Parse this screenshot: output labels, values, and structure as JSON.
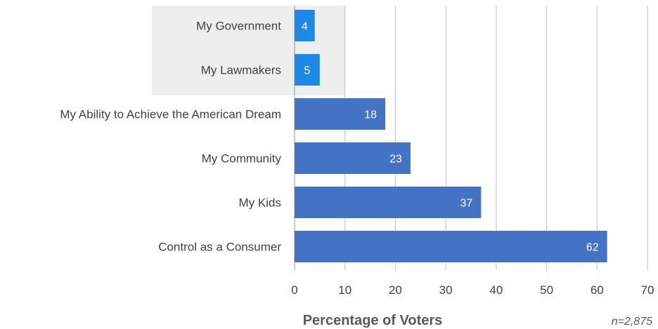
{
  "chart_data": {
    "type": "bar",
    "orientation": "horizontal",
    "categories": [
      "My Government",
      "My Lawmakers",
      "My Ability to Achieve the American Dream",
      "My Community",
      "My Kids",
      "Control as a Consumer"
    ],
    "values": [
      4,
      5,
      18,
      23,
      37,
      62
    ],
    "highlighted": [
      "My Government",
      "My Lawmakers"
    ],
    "xlabel": "Percentage of Voters",
    "xlim": [
      0,
      70
    ],
    "xticks": [
      0,
      10,
      20,
      30,
      40,
      50,
      60,
      70
    ],
    "grid": "vertical",
    "note": "n=2,875",
    "colors": {
      "bar": "#4472c4",
      "bar_highlight": "#1e88e5",
      "highlight_background": "#eeeeee",
      "grid": "#c8c8c8",
      "text": "#404040"
    }
  }
}
